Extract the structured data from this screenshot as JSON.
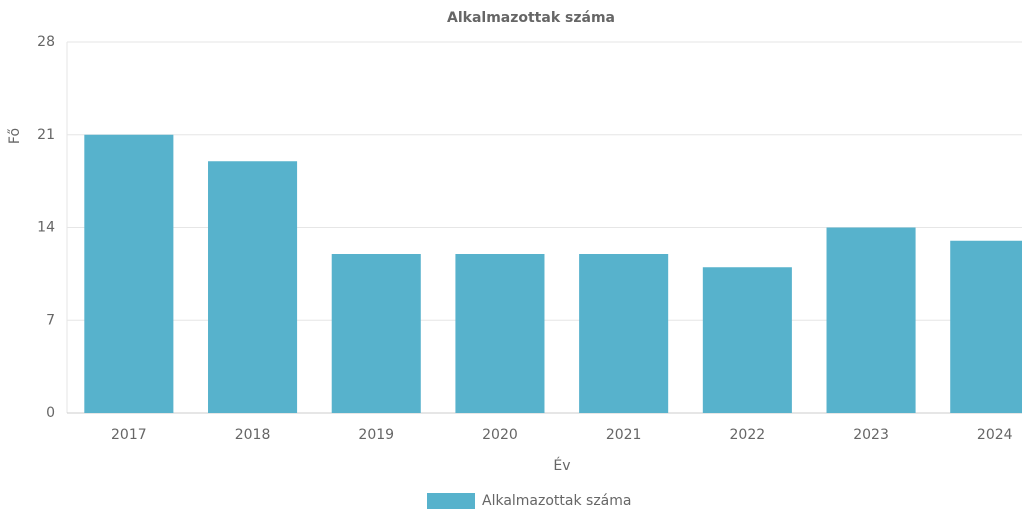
{
  "chart_data": {
    "type": "bar",
    "title": "Alkalmazottak száma",
    "x_label": "Év",
    "y_label": "Fő",
    "categories": [
      "2017",
      "2018",
      "2019",
      "2020",
      "2021",
      "2022",
      "2023",
      "2024"
    ],
    "series": [
      {
        "name": "Alkalmazottak száma",
        "color": "#57b2cc",
        "values": [
          21,
          19,
          12,
          12,
          12,
          11,
          14,
          13
        ]
      }
    ],
    "ylim": [
      0,
      28
    ],
    "yticks": [
      0,
      7,
      14,
      21,
      28
    ],
    "grid": true,
    "legend": "bottom"
  }
}
